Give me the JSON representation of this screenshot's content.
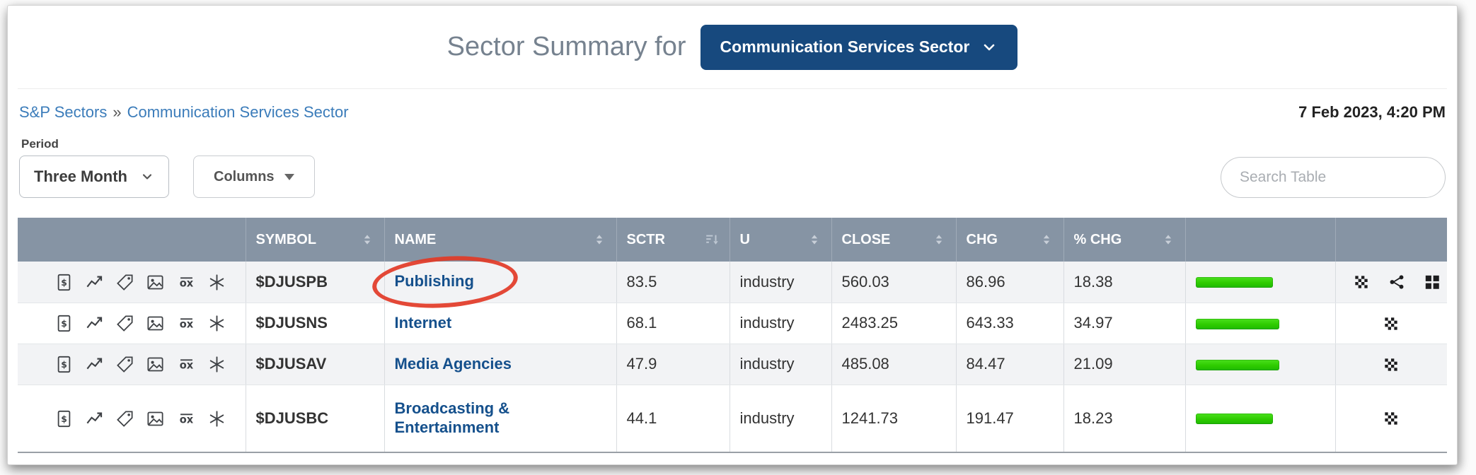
{
  "header": {
    "title": "Sector Summary for",
    "sector_button": "Communication Services Sector"
  },
  "breadcrumb": {
    "items": [
      "S&P Sectors",
      "Communication Services Sector"
    ],
    "separator": "»",
    "timestamp": "7 Feb 2023, 4:20 PM"
  },
  "controls": {
    "period_label": "Period",
    "period_value": "Three Month",
    "columns_label": "Columns",
    "search_placeholder": "Search Table"
  },
  "table": {
    "columns": [
      "SYMBOL",
      "NAME",
      "SCTR",
      "U",
      "CLOSE",
      "CHG",
      "% CHG"
    ],
    "row_tool_icons": [
      "summary-icon",
      "sharpchart-icon",
      "acp-tag-icon",
      "galleryview-icon",
      "pnf-icon",
      "seasonality-icon"
    ],
    "rows": [
      {
        "symbol": "$DJUSPB",
        "name": "Publishing",
        "sctr": "83.5",
        "u": "industry",
        "close": "560.03",
        "chg": "86.96",
        "pct_chg": "18.38",
        "bar_pct": 60,
        "actions": [
          "checkerboard-icon",
          "share-icon",
          "grid-icon"
        ],
        "annotated": true
      },
      {
        "symbol": "$DJUSNS",
        "name": "Internet",
        "sctr": "68.1",
        "u": "industry",
        "close": "2483.25",
        "chg": "643.33",
        "pct_chg": "34.97",
        "bar_pct": 65,
        "actions": [
          "checkerboard-icon"
        ],
        "annotated": false
      },
      {
        "symbol": "$DJUSAV",
        "name": "Media Agencies",
        "sctr": "47.9",
        "u": "industry",
        "close": "485.08",
        "chg": "84.47",
        "pct_chg": "21.09",
        "bar_pct": 65,
        "actions": [
          "checkerboard-icon"
        ],
        "annotated": false
      },
      {
        "symbol": "$DJUSBC",
        "name": "Broadcasting & Entertainment",
        "sctr": "44.1",
        "u": "industry",
        "close": "1241.73",
        "chg": "191.47",
        "pct_chg": "18.23",
        "bar_pct": 60,
        "actions": [
          "checkerboard-icon"
        ],
        "annotated": false
      }
    ]
  },
  "colors": {
    "accent_navy": "#17497e",
    "breadcrumb_link_blue": "#3b7cba",
    "name_link_blue": "#15508c",
    "table_header_bg": "#8694a4",
    "bar_green": "#2ecb00",
    "annotation_red": "#e23a26"
  }
}
